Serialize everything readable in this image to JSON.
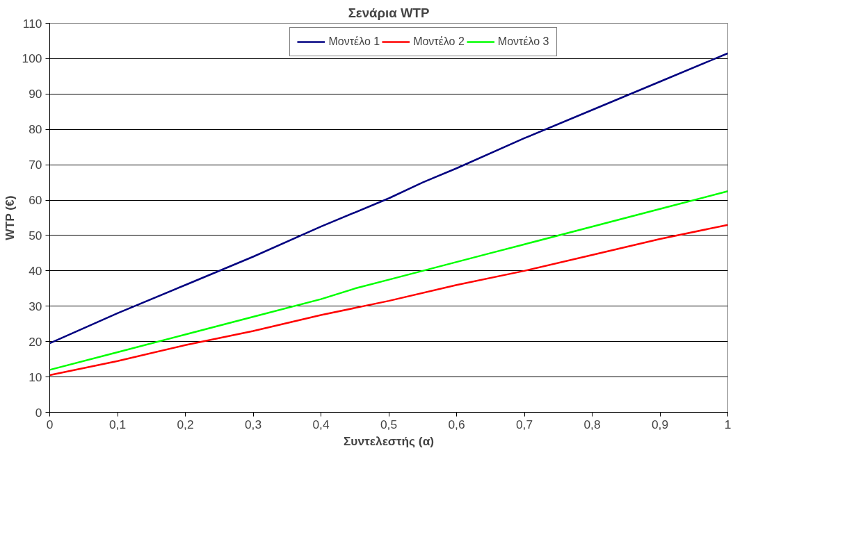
{
  "chart_data": {
    "type": "line",
    "title": "Σενάρια WTP",
    "xlabel": "Συντελεστής (α)",
    "ylabel": "WTP (€)",
    "series": [
      {
        "name": "Μοντέλο 1",
        "color": "#000080",
        "x": [
          0,
          0.1,
          0.2,
          0.3,
          0.4,
          0.5,
          0.55,
          0.6,
          0.7,
          0.8,
          0.9,
          1
        ],
        "values": [
          19.5,
          28,
          36,
          44,
          52.5,
          60.5,
          65,
          69,
          77.5,
          85.5,
          93.5,
          101.5
        ]
      },
      {
        "name": "Μοντέλο 2",
        "color": "#ff0000",
        "x": [
          0,
          0.1,
          0.2,
          0.3,
          0.4,
          0.5,
          0.6,
          0.7,
          0.8,
          0.9,
          1
        ],
        "values": [
          10.5,
          14.5,
          19,
          23,
          27.5,
          31.5,
          36,
          40,
          44.5,
          49,
          53
        ]
      },
      {
        "name": "Μοντέλο 3",
        "color": "#00ff00",
        "x": [
          0,
          0.1,
          0.2,
          0.3,
          0.4,
          0.45,
          0.5,
          0.6,
          0.65,
          0.7,
          0.8,
          0.9,
          1
        ],
        "values": [
          12,
          17,
          22,
          27,
          32,
          35,
          37.5,
          42.5,
          45,
          47.5,
          52.5,
          57.5,
          62.5
        ]
      }
    ],
    "xlim": [
      0,
      1
    ],
    "ylim": [
      0,
      110
    ],
    "xticks": [
      0,
      {
        "value": 0.1,
        "label": "0,1"
      },
      {
        "value": 0.2,
        "label": "0,2"
      },
      {
        "value": 0.3,
        "label": "0,3"
      },
      {
        "value": 0.4,
        "label": "0,4"
      },
      {
        "value": 0.5,
        "label": "0,5"
      },
      {
        "value": 0.6,
        "label": "0,6"
      },
      {
        "value": 0.7,
        "label": "0,7"
      },
      {
        "value": 0.8,
        "label": "0,8"
      },
      {
        "value": 0.9,
        "label": "0,9"
      },
      1
    ],
    "yticks": [
      0,
      10,
      20,
      30,
      40,
      50,
      60,
      70,
      80,
      90,
      100,
      110
    ],
    "grid": "y",
    "legend": "top"
  }
}
